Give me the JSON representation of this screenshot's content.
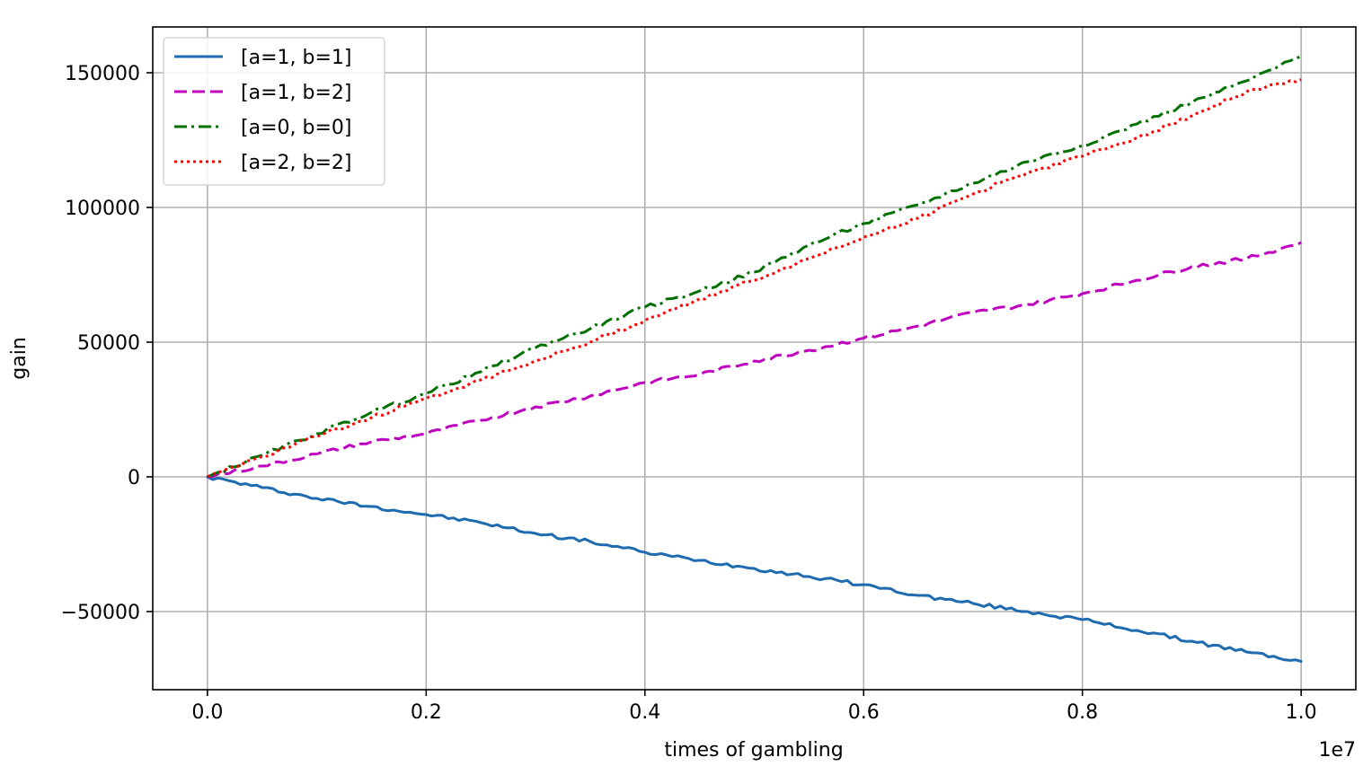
{
  "chart_data": {
    "type": "line",
    "xlabel": "times of gambling",
    "ylabel": "gain",
    "x_offset_text": "1e7",
    "x_scale": 10000000,
    "xlim": [
      -0.05,
      1.05
    ],
    "ylim": [
      -79000,
      167000
    ],
    "x_ticks": [
      0.0,
      0.2,
      0.4,
      0.6,
      0.8,
      1.0
    ],
    "x_tick_labels": [
      "0.0",
      "0.2",
      "0.4",
      "0.6",
      "0.8",
      "1.0"
    ],
    "y_ticks": [
      -50000,
      0,
      50000,
      100000,
      150000
    ],
    "y_tick_labels": [
      "−50000",
      "0",
      "50000",
      "100000",
      "150000"
    ],
    "grid": true,
    "legend_position": "top-left",
    "series": [
      {
        "name": "[a=1, b=1]",
        "color": "#1f6bb0",
        "style": "solid",
        "x": [
          0.0,
          0.05,
          0.1,
          0.15,
          0.2,
          0.25,
          0.3,
          0.35,
          0.4,
          0.45,
          0.5,
          0.55,
          0.6,
          0.65,
          0.7,
          0.75,
          0.8,
          0.85,
          0.9,
          0.95,
          1.0
        ],
        "y": [
          0,
          -4000,
          -8000,
          -11000,
          -14000,
          -17000,
          -21000,
          -24000,
          -28000,
          -31000,
          -34000,
          -37000,
          -40000,
          -44000,
          -47000,
          -50000,
          -53000,
          -57000,
          -61000,
          -65000,
          -68500
        ]
      },
      {
        "name": "[a=1, b=2]",
        "color": "#bf00bf",
        "style": "dashed",
        "x": [
          0.0,
          0.05,
          0.1,
          0.15,
          0.2,
          0.25,
          0.3,
          0.35,
          0.4,
          0.45,
          0.5,
          0.55,
          0.6,
          0.65,
          0.7,
          0.75,
          0.8,
          0.85,
          0.9,
          0.95,
          1.0
        ],
        "y": [
          0,
          4000,
          8500,
          13000,
          16000,
          21000,
          26000,
          30000,
          35000,
          38000,
          43000,
          47000,
          51500,
          56000,
          61000,
          64000,
          68000,
          73000,
          78000,
          81000,
          87000
        ]
      },
      {
        "name": "[a=0, b=0]",
        "color": "#007000",
        "style": "dashdot",
        "x": [
          0.0,
          0.05,
          0.1,
          0.15,
          0.2,
          0.25,
          0.3,
          0.35,
          0.4,
          0.45,
          0.5,
          0.55,
          0.6,
          0.65,
          0.7,
          0.75,
          0.8,
          0.85,
          0.9,
          0.95,
          1.0
        ],
        "y": [
          0,
          8000,
          16000,
          24000,
          31000,
          39000,
          48000,
          55000,
          63000,
          69000,
          76000,
          86000,
          94000,
          101000,
          109000,
          117000,
          123000,
          131000,
          139000,
          147000,
          156000
        ]
      },
      {
        "name": "[a=2, b=2]",
        "color": "#ff0000",
        "style": "dotted",
        "x": [
          0.0,
          0.05,
          0.1,
          0.15,
          0.2,
          0.25,
          0.3,
          0.35,
          0.4,
          0.45,
          0.5,
          0.55,
          0.6,
          0.65,
          0.7,
          0.75,
          0.8,
          0.85,
          0.9,
          0.95,
          1.0
        ],
        "y": [
          0,
          7500,
          15000,
          22000,
          29000,
          36000,
          43000,
          50000,
          58000,
          66000,
          73000,
          81000,
          89000,
          96000,
          105000,
          113000,
          119000,
          126000,
          134000,
          143000,
          147500
        ]
      }
    ]
  }
}
